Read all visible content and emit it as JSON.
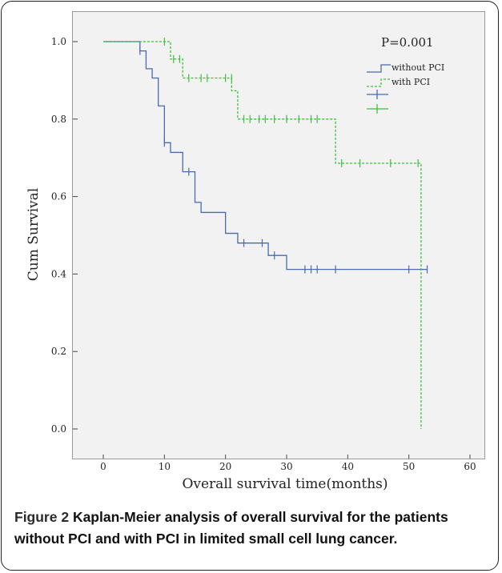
{
  "colors": {
    "without_pci": "#4a6ab0",
    "with_pci": "#3cbf3c",
    "plot_bg": "#f2f2f2"
  },
  "chart_data": {
    "type": "line",
    "title": "",
    "xlabel": "Overall survival time(months)",
    "ylabel": "Cum Survival",
    "xlim": [
      0,
      60
    ],
    "ylim": [
      0.0,
      1.0
    ],
    "x_ticks": [
      "0",
      "10",
      "20",
      "30",
      "40",
      "50",
      "60"
    ],
    "y_ticks": [
      "0.0",
      "0.2",
      "0.4",
      "0.6",
      "0.8",
      "1.0"
    ],
    "annotation": "P=0.001",
    "legend_position": "top-right",
    "legend_entries": [
      "without PCI",
      "with PCI",
      "",
      ""
    ],
    "series": [
      {
        "name": "without PCI",
        "style": "solid",
        "step_x": [
          0,
          6,
          7,
          8,
          9,
          10,
          11,
          13,
          15,
          16,
          18,
          20,
          22,
          27,
          30,
          53
        ],
        "step_y": [
          1.0,
          0.976,
          0.93,
          0.906,
          0.834,
          0.739,
          0.714,
          0.664,
          0.585,
          0.559,
          0.559,
          0.505,
          0.48,
          0.448,
          0.412,
          0.412
        ],
        "censored": [
          [
            6,
            0.976
          ],
          [
            10,
            0.739
          ],
          [
            14,
            0.664
          ],
          [
            23,
            0.48
          ],
          [
            26,
            0.48
          ],
          [
            28,
            0.448
          ],
          [
            33,
            0.412
          ],
          [
            34,
            0.412
          ],
          [
            35,
            0.412
          ],
          [
            38,
            0.412
          ],
          [
            50,
            0.412
          ],
          [
            53,
            0.412
          ]
        ]
      },
      {
        "name": "with PCI",
        "style": "dashed",
        "step_x": [
          0,
          11,
          13,
          21,
          22,
          38,
          52,
          52
        ],
        "step_y": [
          1.0,
          0.955,
          0.906,
          0.873,
          0.8,
          0.686,
          0.686,
          0.0
        ],
        "censored": [
          [
            10,
            1.0
          ],
          [
            11.5,
            0.955
          ],
          [
            12.5,
            0.955
          ],
          [
            14,
            0.906
          ],
          [
            16,
            0.906
          ],
          [
            17,
            0.906
          ],
          [
            20,
            0.906
          ],
          [
            21,
            0.906
          ],
          [
            23,
            0.8
          ],
          [
            24,
            0.8
          ],
          [
            25.5,
            0.8
          ],
          [
            26.5,
            0.8
          ],
          [
            28,
            0.8
          ],
          [
            30,
            0.8
          ],
          [
            32,
            0.8
          ],
          [
            34,
            0.8
          ],
          [
            35,
            0.8
          ],
          [
            39,
            0.686
          ],
          [
            42,
            0.686
          ],
          [
            47,
            0.686
          ],
          [
            51.5,
            0.686
          ]
        ]
      }
    ]
  },
  "caption": {
    "label": "Figure 2",
    "text": " Kaplan-Meier analysis of overall survival for the patients without PCI and with PCI in limited small cell lung cancer."
  }
}
